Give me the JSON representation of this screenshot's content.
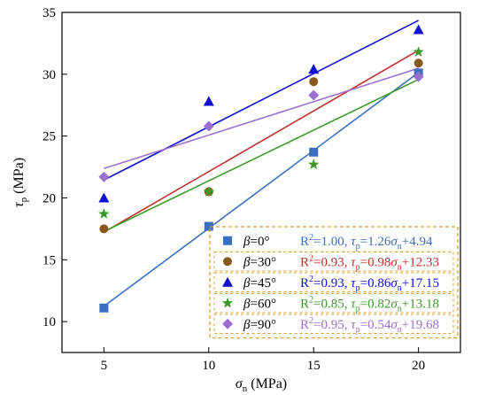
{
  "chart_data": {
    "type": "scatter",
    "xlabel": "σn (MPa)",
    "ylabel": "τp (MPa)",
    "xlim": [
      3,
      22
    ],
    "ylim": [
      7.5,
      35
    ],
    "x_ticks": [
      5,
      10,
      15,
      20
    ],
    "y_ticks": [
      10,
      15,
      20,
      25,
      30,
      35
    ],
    "legend_position": "bottom-right",
    "series": [
      {
        "name": "β=0°",
        "marker": "square",
        "color": "#3b6fbf",
        "x": [
          5,
          10,
          15,
          20
        ],
        "y": [
          11.1,
          17.7,
          23.7,
          30.1
        ],
        "fit_label": "R2=1.00, τp=1.26σn+4.94",
        "fit_slope": 1.26,
        "fit_intercept": 4.94
      },
      {
        "name": "β=30°",
        "marker": "circle",
        "color": "#c0302a",
        "marker_color": "#8a5a1c",
        "x": [
          5,
          10,
          15,
          20
        ],
        "y": [
          17.5,
          20.5,
          29.4,
          30.9
        ],
        "fit_label": "R2=0.93, τp=0.98σn+12.33",
        "fit_slope": 0.98,
        "fit_intercept": 12.33
      },
      {
        "name": "β=45°",
        "marker": "triangle",
        "color": "#1010d0",
        "x": [
          5,
          10,
          15,
          20
        ],
        "y": [
          20.0,
          27.8,
          30.4,
          33.6
        ],
        "fit_label": "R2=0.93, τp=0.86σn+17.15",
        "fit_slope": 0.86,
        "fit_intercept": 17.15
      },
      {
        "name": "β=60°",
        "marker": "star",
        "color": "#3d9a2a",
        "x": [
          5,
          10,
          15,
          20
        ],
        "y": [
          18.7,
          20.5,
          22.7,
          31.8
        ],
        "fit_label": "R2=0.85, τp=0.82σn+13.18",
        "fit_slope": 0.82,
        "fit_intercept": 13.18
      },
      {
        "name": "β=90°",
        "marker": "diamond",
        "color": "#9b6fd0",
        "x": [
          5,
          10,
          15,
          20
        ],
        "y": [
          21.7,
          25.8,
          28.3,
          29.8
        ],
        "fit_label": "R2=0.95, τp=0.54σn+19.68",
        "fit_slope": 0.54,
        "fit_intercept": 19.68
      }
    ],
    "legend_border_color": "#d9a030"
  }
}
